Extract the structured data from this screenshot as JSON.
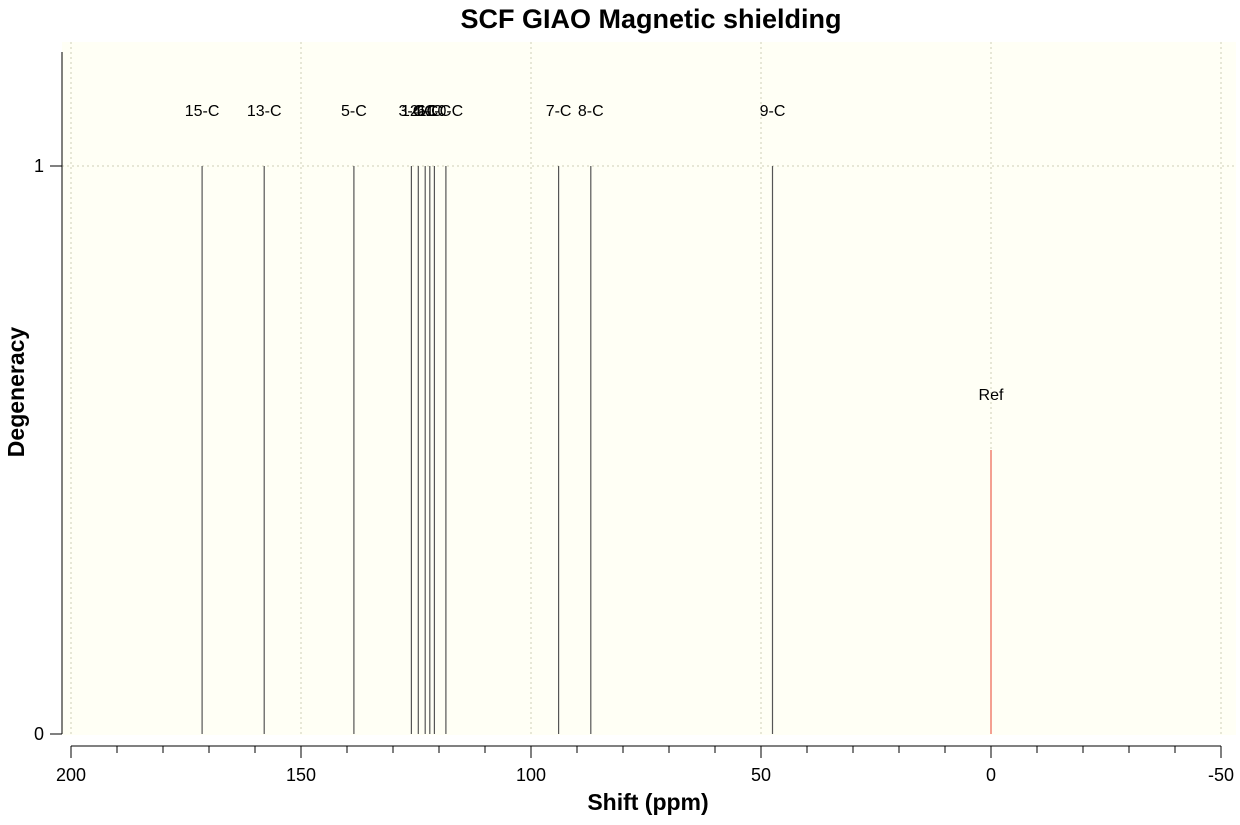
{
  "chart_data": {
    "type": "bar",
    "title": "SCF GIAO Magnetic shielding",
    "xlabel": "Shift (ppm)",
    "ylabel": "Degeneracy",
    "xlim": [
      200,
      -50
    ],
    "ylim": [
      0,
      1.2
    ],
    "x_ticks": [
      200,
      150,
      100,
      50,
      0,
      -50
    ],
    "x_tick_labels": [
      "200",
      "150",
      "100",
      "50",
      "0",
      "-50"
    ],
    "x_minor_step": 10,
    "y_ticks": [
      0,
      1
    ],
    "y_tick_labels": [
      "0",
      "1"
    ],
    "grid": true,
    "background_color": "#fffff5",
    "peak_color": "#555555",
    "reference_color": "#f08070",
    "peaks": [
      {
        "label": "15-C",
        "shift": 171.5,
        "degeneracy": 1
      },
      {
        "label": "13-C",
        "shift": 158.0,
        "degeneracy": 1
      },
      {
        "label": "5-C",
        "shift": 138.5,
        "degeneracy": 1
      },
      {
        "label": "3-C",
        "shift": 126.0,
        "degeneracy": 1
      },
      {
        "label": "12-C",
        "shift": 124.5,
        "degeneracy": 1
      },
      {
        "label": "4-C",
        "shift": 123.0,
        "degeneracy": 1
      },
      {
        "label": "6-C",
        "shift": 122.0,
        "degeneracy": 1
      },
      {
        "label": "11-C",
        "shift": 121.0,
        "degeneracy": 1
      },
      {
        "label": "10-C",
        "shift": 118.5,
        "degeneracy": 1
      },
      {
        "label": "7-C",
        "shift": 94.0,
        "degeneracy": 1
      },
      {
        "label": "8-C",
        "shift": 87.0,
        "degeneracy": 1
      },
      {
        "label": "9-C",
        "shift": 47.5,
        "degeneracy": 1
      }
    ],
    "reference": {
      "label": "Ref",
      "shift": 0,
      "degeneracy": 0.5
    }
  }
}
